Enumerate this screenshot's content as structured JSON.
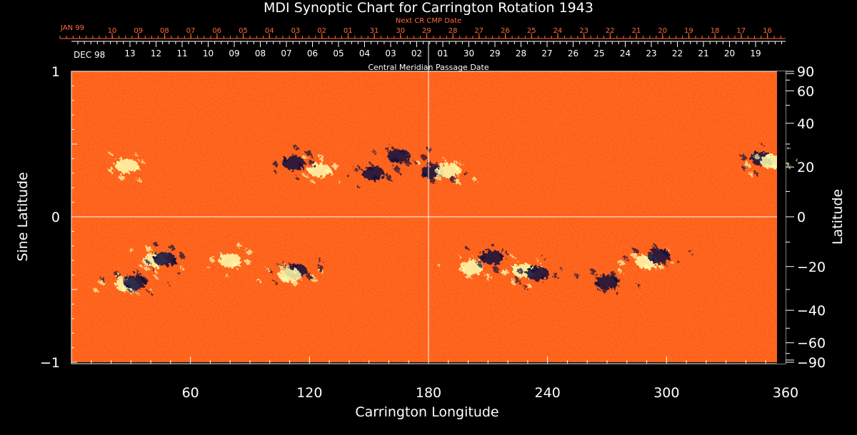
{
  "chart_data": {
    "type": "heatmap",
    "title": "MDI Synoptic Chart for Carrington Rotation 1943",
    "xlabel": "Carrington Longitude",
    "ylabel_left": "Sine Latitude",
    "ylabel_right": "Latitude",
    "xlim": [
      0,
      360
    ],
    "ylim": [
      -1,
      1
    ],
    "x_ticks": [
      60,
      120,
      180,
      240,
      300,
      360
    ],
    "y_ticks_left": [
      {
        "value": 1,
        "label": "1"
      },
      {
        "value": 0,
        "label": "0"
      },
      {
        "value": -1,
        "label": "−1"
      }
    ],
    "y_ticks_right": [
      {
        "value": 90,
        "label": "90"
      },
      {
        "value": 60,
        "label": "60"
      },
      {
        "value": 40,
        "label": "40"
      },
      {
        "value": 20,
        "label": "20"
      },
      {
        "value": 0,
        "label": "0"
      },
      {
        "value": -20,
        "label": "−20"
      },
      {
        "value": -40,
        "label": "−40"
      },
      {
        "value": -60,
        "label": "−60"
      },
      {
        "value": -90,
        "label": "−90"
      }
    ],
    "next_cr_axis": {
      "label": "Next CR CMP Date",
      "month_label": "JAN 99",
      "dates": [
        "10",
        "09",
        "08",
        "07",
        "06",
        "05",
        "04",
        "03",
        "02",
        "01",
        "31",
        "30",
        "29",
        "28",
        "27",
        "26",
        "25",
        "24",
        "23",
        "22",
        "21",
        "20",
        "19",
        "18",
        "17",
        "16"
      ]
    },
    "cmp_axis": {
      "label": "Central Meridian Passage Date",
      "month_label": "DEC 98",
      "dates": [
        "13",
        "12",
        "11",
        "10",
        "09",
        "08",
        "07",
        "06",
        "05",
        "04",
        "03",
        "02",
        "01",
        "30",
        "29",
        "28",
        "27",
        "26",
        "25",
        "24",
        "23",
        "22",
        "21",
        "20",
        "19"
      ]
    },
    "colors": {
      "background": "#ff5a14",
      "positive": "#ffffb0",
      "negative": "#0a0a3c",
      "text": "#ffffff",
      "secondary_axis": "#ff6a3a"
    },
    "active_regions": [
      {
        "lon": 125,
        "sinlat": 0.32,
        "polarity": "positive"
      },
      {
        "lon": 112,
        "sinlat": 0.37,
        "polarity": "negative"
      },
      {
        "lon": 152,
        "sinlat": 0.3,
        "polarity": "negative"
      },
      {
        "lon": 165,
        "sinlat": 0.42,
        "polarity": "negative"
      },
      {
        "lon": 182,
        "sinlat": 0.31,
        "polarity": "negative"
      },
      {
        "lon": 190,
        "sinlat": 0.32,
        "polarity": "positive"
      },
      {
        "lon": 28,
        "sinlat": 0.35,
        "polarity": "positive"
      },
      {
        "lon": 348,
        "sinlat": 0.4,
        "polarity": "negative"
      },
      {
        "lon": 353,
        "sinlat": 0.38,
        "polarity": "positive"
      },
      {
        "lon": 28,
        "sinlat": -0.47,
        "polarity": "positive"
      },
      {
        "lon": 32,
        "sinlat": -0.45,
        "polarity": "negative"
      },
      {
        "lon": 42,
        "sinlat": -0.3,
        "polarity": "positive"
      },
      {
        "lon": 47,
        "sinlat": -0.29,
        "polarity": "negative"
      },
      {
        "lon": 80,
        "sinlat": -0.3,
        "polarity": "positive"
      },
      {
        "lon": 113,
        "sinlat": -0.37,
        "polarity": "negative"
      },
      {
        "lon": 110,
        "sinlat": -0.4,
        "polarity": "positive"
      },
      {
        "lon": 202,
        "sinlat": -0.35,
        "polarity": "positive"
      },
      {
        "lon": 212,
        "sinlat": -0.28,
        "polarity": "negative"
      },
      {
        "lon": 228,
        "sinlat": -0.37,
        "polarity": "positive"
      },
      {
        "lon": 235,
        "sinlat": -0.39,
        "polarity": "negative"
      },
      {
        "lon": 290,
        "sinlat": -0.31,
        "polarity": "positive"
      },
      {
        "lon": 296,
        "sinlat": -0.27,
        "polarity": "negative"
      },
      {
        "lon": 270,
        "sinlat": -0.45,
        "polarity": "negative"
      }
    ]
  }
}
